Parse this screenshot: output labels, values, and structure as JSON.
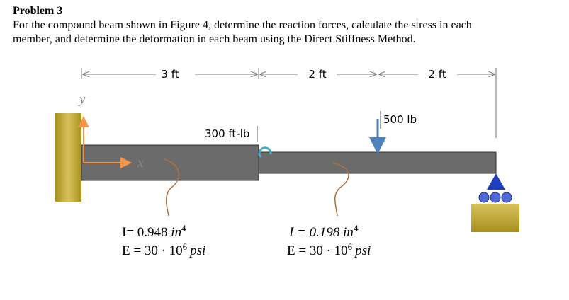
{
  "header": {
    "title": "Problem 3",
    "lines": [
      "For the compound beam shown in Figure 4, determine the reaction forces, calculate the stress in each",
      "member, and determine the deformation in each beam using the Direct Stiffness Method."
    ]
  },
  "figure": {
    "dimensions": [
      "3 ft",
      "2 ft",
      "2 ft"
    ],
    "axes": {
      "y": "y",
      "x": "x"
    },
    "moment": "300 ft-lb",
    "load": "500 lb",
    "members": [
      {
        "inertia": {
          "text": "I= 0.948",
          "unit": "in",
          "power": "4"
        },
        "modulus": {
          "text": "E = 30 · 10",
          "power": "6",
          "unit": "psi"
        }
      },
      {
        "inertia": {
          "text": "I = 0.198",
          "unit": "in",
          "power": "4"
        },
        "modulus": {
          "text": "E = 30 · 10",
          "power": "6",
          "unit": "psi"
        }
      }
    ]
  }
}
